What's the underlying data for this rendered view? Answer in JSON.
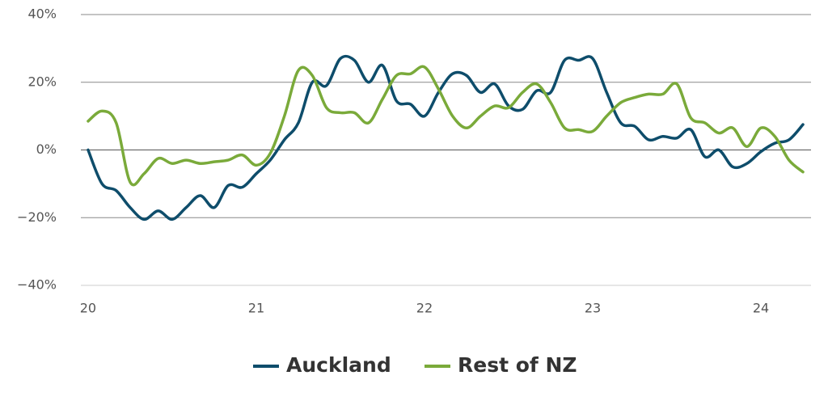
{
  "chart_data": {
    "type": "line",
    "x": [
      20,
      20.083,
      20.167,
      20.25,
      20.333,
      20.417,
      20.5,
      20.583,
      20.667,
      20.75,
      20.833,
      20.917,
      21,
      21.083,
      21.167,
      21.25,
      21.333,
      21.417,
      21.5,
      21.583,
      21.667,
      21.75,
      21.833,
      21.917,
      22,
      22.083,
      22.167,
      22.25,
      22.333,
      22.417,
      22.5,
      22.583,
      22.667,
      22.75,
      22.833,
      22.917,
      23,
      23.083,
      23.167,
      23.25,
      23.333,
      23.417,
      23.5,
      23.583,
      23.667,
      23.75,
      23.833,
      23.917,
      24,
      24.083,
      24.167,
      24.25
    ],
    "series": [
      {
        "name": "Auckland",
        "color": "#0e4d6b",
        "values": [
          0,
          -10,
          -12,
          -17,
          -20.5,
          -18,
          -20.5,
          -17,
          -13.5,
          -17,
          -10.5,
          -11,
          -7,
          -3,
          3,
          8,
          20,
          19,
          27,
          26.5,
          20,
          25,
          14.5,
          13.5,
          10,
          17,
          22.5,
          22,
          17,
          19.5,
          13,
          12,
          17.5,
          17,
          26.5,
          26.5,
          27,
          17,
          8,
          7,
          3,
          4,
          3.5,
          6,
          -2,
          0,
          -5,
          -4,
          -0.5,
          2,
          3,
          7.5
        ]
      },
      {
        "name": "Rest of NZ",
        "color": "#7aaa3a",
        "values": [
          8.5,
          11.5,
          8,
          -9.5,
          -7,
          -2.5,
          -4,
          -3,
          -4,
          -3.5,
          -3,
          -1.5,
          -4.5,
          -1,
          10,
          23.5,
          22,
          12.5,
          11,
          11,
          8,
          15,
          22,
          22.5,
          24.5,
          18,
          10,
          6.5,
          10,
          13,
          12.5,
          17,
          19.5,
          14,
          6.5,
          6,
          5.5,
          10,
          14,
          15.5,
          16.5,
          16.5,
          19.5,
          9.5,
          8,
          5,
          6.5,
          1,
          6.5,
          4,
          -3,
          -6.5
        ]
      }
    ],
    "xlim": [
      19.957,
      24.298
    ],
    "xticks": [
      20,
      21,
      22,
      23,
      24
    ],
    "ylim": [
      -40,
      40
    ],
    "yticks": [
      {
        "value": -40,
        "label": "−40%"
      },
      {
        "value": -20,
        "label": "−20%"
      },
      {
        "value": 0,
        "label": "0%"
      },
      {
        "value": 20,
        "label": "20%"
      },
      {
        "value": 40,
        "label": "40%"
      }
    ],
    "grid": true
  }
}
